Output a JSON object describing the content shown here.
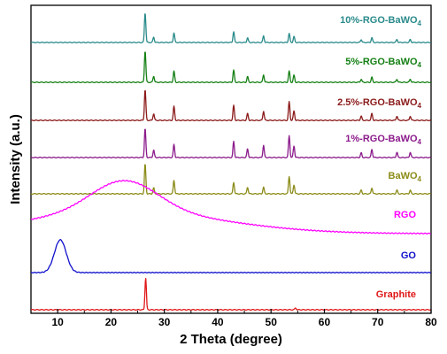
{
  "chart_data": {
    "type": "line",
    "xlabel": "2 Theta (degree)",
    "ylabel": "Intensity (a.u.)",
    "xlim": [
      5,
      80
    ],
    "xticks": [
      10,
      20,
      30,
      40,
      50,
      60,
      70,
      80
    ],
    "grid": false,
    "legend": "none",
    "series": [
      {
        "name": "10%-RGO-BaWO4",
        "label_main": "10%-RGO-BaWO",
        "label_sub": "4",
        "color": "#2a8a8a",
        "baseline": 0.95,
        "peaks": [
          [
            26.4,
            1.0
          ],
          [
            28.0,
            0.18
          ],
          [
            31.8,
            0.32
          ],
          [
            43.0,
            0.36
          ],
          [
            45.6,
            0.16
          ],
          [
            48.6,
            0.22
          ],
          [
            53.4,
            0.3
          ],
          [
            54.3,
            0.2
          ],
          [
            66.9,
            0.1
          ],
          [
            68.9,
            0.16
          ],
          [
            73.6,
            0.1
          ],
          [
            76.1,
            0.1
          ]
        ]
      },
      {
        "name": "5%-RGO-BaWO4",
        "label_main": "5%-RGO-BaWO",
        "label_sub": "4",
        "color": "#158015",
        "baseline": 0.95,
        "peaks": [
          [
            26.4,
            1.0
          ],
          [
            28.0,
            0.2
          ],
          [
            31.8,
            0.35
          ],
          [
            43.0,
            0.38
          ],
          [
            45.6,
            0.18
          ],
          [
            48.6,
            0.24
          ],
          [
            53.4,
            0.35
          ],
          [
            54.3,
            0.22
          ],
          [
            66.9,
            0.1
          ],
          [
            68.9,
            0.16
          ],
          [
            73.6,
            0.1
          ],
          [
            76.1,
            0.1
          ]
        ]
      },
      {
        "name": "2.5%-RGO-BaWO4",
        "label_main": "2.5%-RGO-BaWO",
        "label_sub": "4",
        "color": "#8b1a1a",
        "baseline": 0.95,
        "peaks": [
          [
            26.4,
            1.0
          ],
          [
            28.0,
            0.22
          ],
          [
            31.8,
            0.45
          ],
          [
            43.0,
            0.48
          ],
          [
            45.6,
            0.22
          ],
          [
            48.6,
            0.3
          ],
          [
            53.4,
            0.6
          ],
          [
            54.3,
            0.3
          ],
          [
            66.9,
            0.14
          ],
          [
            68.9,
            0.22
          ],
          [
            73.6,
            0.14
          ],
          [
            76.1,
            0.14
          ]
        ]
      },
      {
        "name": "1%-RGO-BaWO4",
        "label_main": "1%-RGO-BaWO",
        "label_sub": "4",
        "color": "#8b1a8b",
        "baseline": 0.95,
        "peaks": [
          [
            26.4,
            1.0
          ],
          [
            28.0,
            0.26
          ],
          [
            31.8,
            0.45
          ],
          [
            43.0,
            0.55
          ],
          [
            45.6,
            0.3
          ],
          [
            48.6,
            0.42
          ],
          [
            53.4,
            0.75
          ],
          [
            54.3,
            0.4
          ],
          [
            66.9,
            0.16
          ],
          [
            68.9,
            0.28
          ],
          [
            73.6,
            0.18
          ],
          [
            76.1,
            0.18
          ]
        ]
      },
      {
        "name": "BaWO4",
        "label_main": "BaWO",
        "label_sub": "4",
        "color": "#8b8b18",
        "baseline": 0.95,
        "peaks": [
          [
            26.4,
            1.0
          ],
          [
            28.0,
            0.2
          ],
          [
            31.8,
            0.45
          ],
          [
            43.0,
            0.38
          ],
          [
            45.6,
            0.22
          ],
          [
            48.6,
            0.22
          ],
          [
            53.4,
            0.58
          ],
          [
            54.3,
            0.3
          ],
          [
            66.9,
            0.12
          ],
          [
            68.9,
            0.2
          ],
          [
            73.6,
            0.12
          ],
          [
            76.1,
            0.12
          ]
        ]
      },
      {
        "name": "RGO",
        "label_main": "RGO",
        "label_sub": "",
        "color": "#ff00ff",
        "baseline": 0.95,
        "broad": [
          22.5,
          0.78,
          6.2,
          18.0,
          0.55
        ]
      },
      {
        "name": "GO",
        "label_main": "GO",
        "label_sub": "",
        "color": "#1010cc",
        "baseline": 0.95,
        "broad": [
          10.5,
          1.0,
          1.1,
          0,
          0
        ]
      },
      {
        "name": "Graphite",
        "label_main": "Graphite",
        "label_sub": "",
        "color": "#e01818",
        "baseline": 0.95,
        "peaks": [
          [
            26.5,
            1.0
          ],
          [
            54.6,
            0.06
          ]
        ]
      }
    ]
  }
}
